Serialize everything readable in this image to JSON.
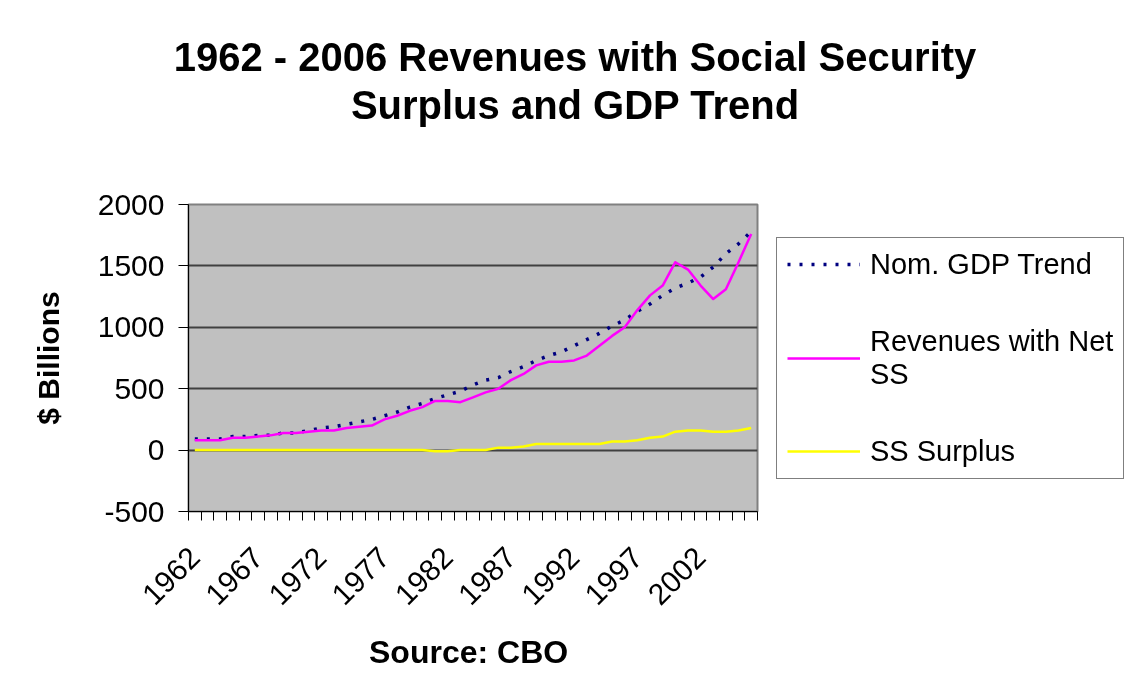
{
  "chart_data": {
    "type": "line",
    "title": "1962 - 2006 Revenues with Social Security Surplus and GDP Trend",
    "ylabel": "$ Billions",
    "annotations": [
      "Source:  CBO"
    ],
    "categories": [
      "1962",
      null,
      null,
      null,
      null,
      "1967",
      null,
      null,
      null,
      null,
      "1972",
      null,
      null,
      null,
      null,
      "1977",
      null,
      null,
      null,
      null,
      "1982",
      null,
      null,
      null,
      null,
      "1987",
      null,
      null,
      null,
      null,
      "1992",
      null,
      null,
      null,
      null,
      "1997",
      null,
      null,
      null,
      null,
      "2002",
      null,
      null,
      null,
      null
    ],
    "series": [
      {
        "name": "Nom. GDP Trend",
        "color": "#000080",
        "line_style": "dotted",
        "values": [
          90,
          90,
          90,
          110,
          110,
          120,
          120,
          140,
          140,
          160,
          180,
          190,
          210,
          230,
          250,
          280,
          310,
          350,
          380,
          420,
          450,
          480,
          530,
          570,
          590,
          640,
          680,
          730,
          770,
          800,
          850,
          900,
          950,
          1010,
          1060,
          1130,
          1190,
          1260,
          1320,
          1360,
          1410,
          1490,
          1600,
          1680,
          1780
        ]
      },
      {
        "name": "Revenues with Net SS",
        "color": "#ff00ff",
        "line_style": "solid",
        "values": [
          80,
          80,
          80,
          100,
          100,
          110,
          120,
          140,
          140,
          150,
          160,
          160,
          180,
          190,
          200,
          250,
          280,
          320,
          350,
          400,
          400,
          390,
          430,
          470,
          500,
          570,
          620,
          690,
          720,
          720,
          730,
          770,
          850,
          930,
          1000,
          1140,
          1260,
          1340,
          1530,
          1470,
          1340,
          1230,
          1310,
          1530,
          1760
        ]
      },
      {
        "name": "SS Surplus",
        "color": "#ffff00",
        "line_style": "solid",
        "values": [
          0,
          0,
          0,
          0,
          0,
          0,
          0,
          0,
          0,
          0,
          0,
          0,
          0,
          0,
          0,
          0,
          0,
          0,
          0,
          -10,
          -10,
          0,
          0,
          0,
          20,
          20,
          30,
          50,
          50,
          50,
          50,
          50,
          50,
          70,
          70,
          80,
          100,
          110,
          150,
          160,
          160,
          150,
          150,
          160,
          180
        ]
      }
    ],
    "ylim": [
      -500,
      2000
    ],
    "yticks": [
      -500,
      0,
      500,
      1000,
      1500,
      2000
    ],
    "grid": "y",
    "legend": "right"
  }
}
